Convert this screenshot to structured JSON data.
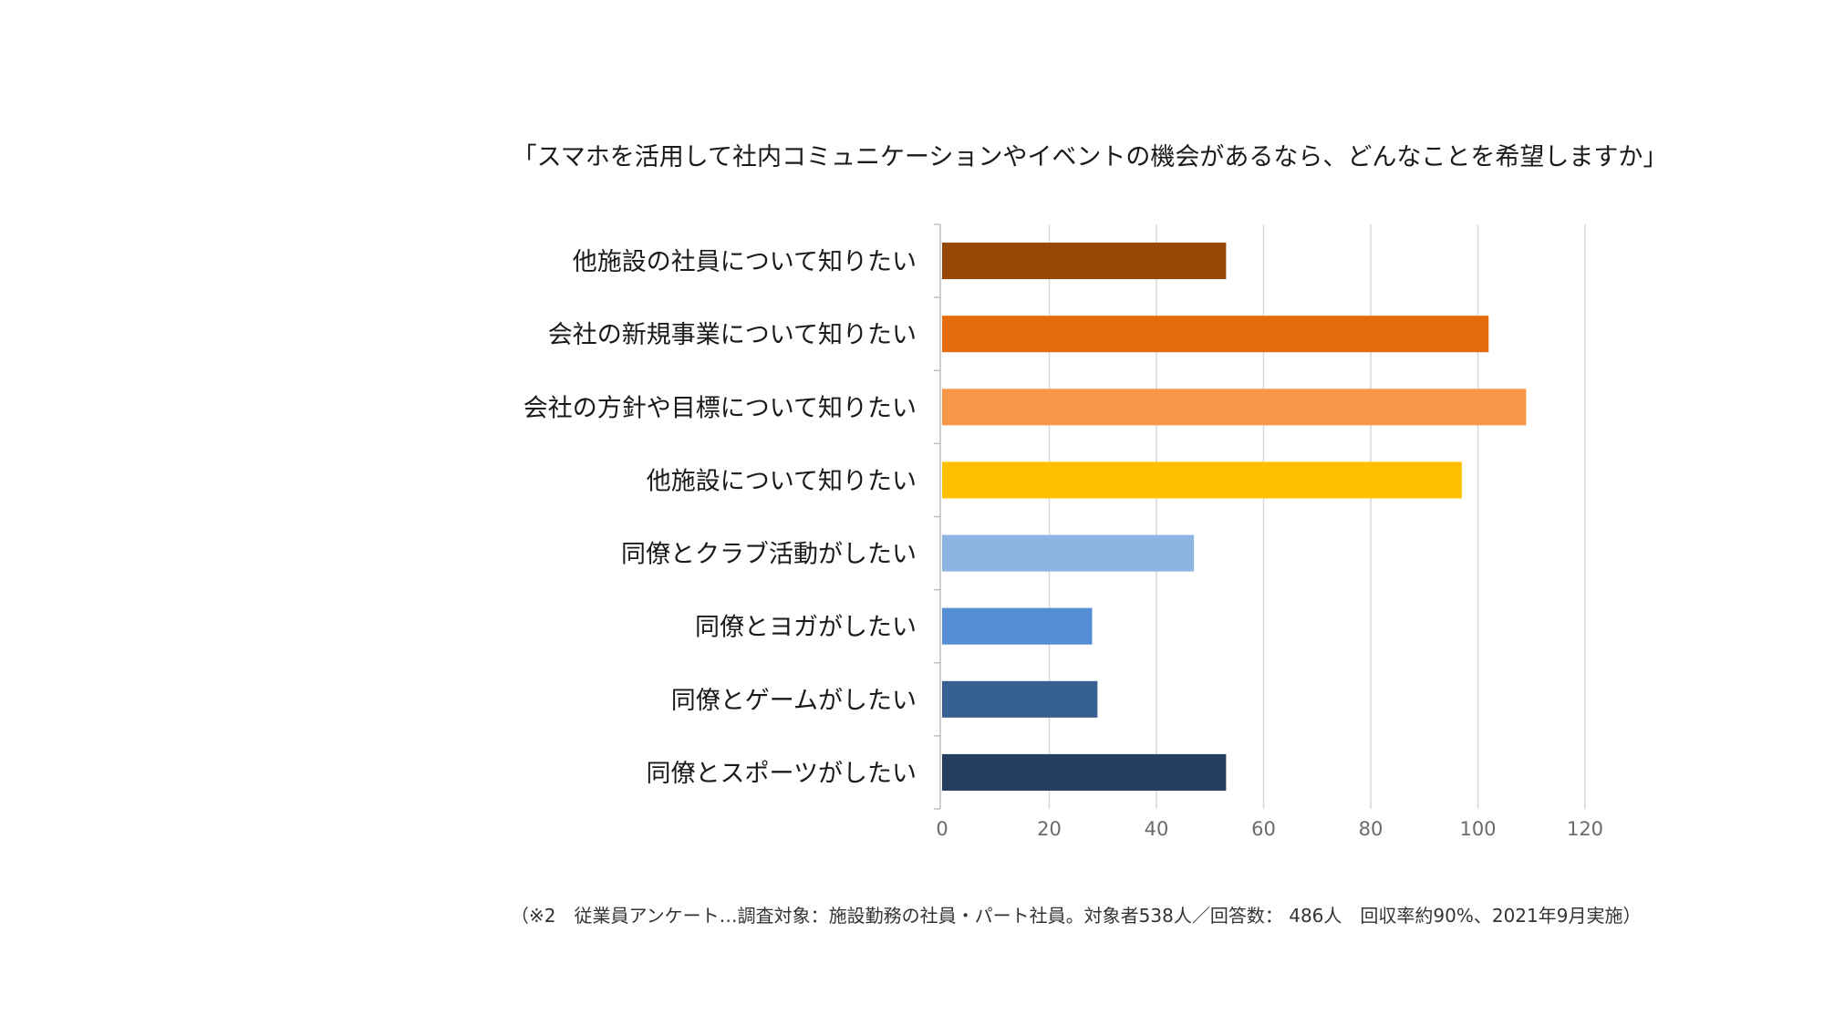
{
  "chart_data": {
    "type": "bar",
    "orientation": "horizontal",
    "title": "「スマホを活用して社内コミュニケーションやイベントの機会があるなら、どんなことを希望しますか」",
    "categories": [
      "他施設の社員について知りたい",
      "会社の新規事業について知りたい",
      "会社の方針や目標について知りたい",
      "他施設について知りたい",
      "同僚とクラブ活動がしたい",
      "同僚とヨガがしたい",
      "同僚とゲームがしたい",
      "同僚とスポーツがしたい"
    ],
    "values": [
      53,
      102,
      109,
      97,
      47,
      28,
      29,
      53
    ],
    "colors": [
      "#974706",
      "#E46C0A",
      "#F79646",
      "#FFC000",
      "#8EB4E3",
      "#558ED5",
      "#376092",
      "#253D5E"
    ],
    "xlim": [
      0,
      120
    ],
    "xticks": [
      "0",
      "20",
      "40",
      "60",
      "80",
      "100",
      "120"
    ],
    "xlabel": "",
    "ylabel": "",
    "grid": "vertical",
    "legend": "none"
  },
  "footnote": "（※2　従業員アンケート…調査対象：施設勤務の社員・パート社員。対象者538人／回答数： 486人　回収率約90%、2021年9月実施）"
}
